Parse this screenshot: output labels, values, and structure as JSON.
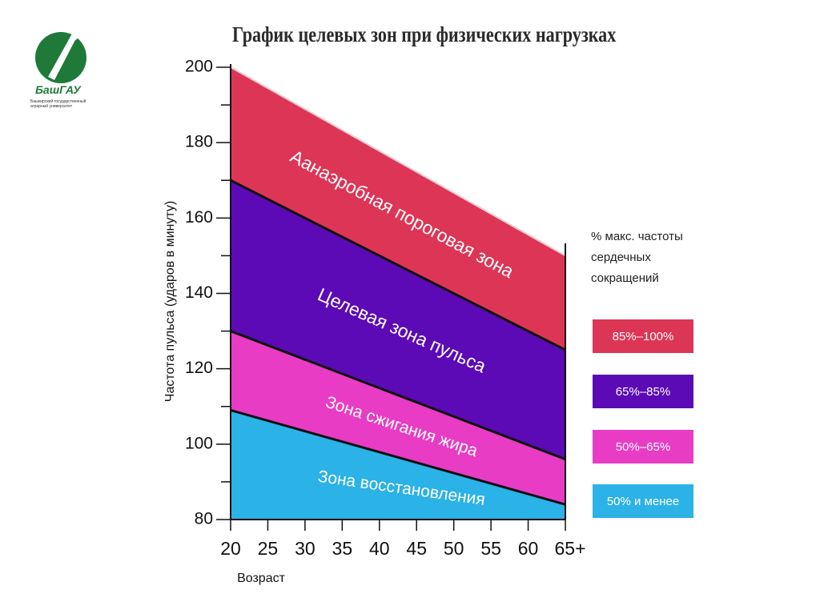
{
  "logo": {
    "name": "БашГАУ",
    "subtitle": "Башкирский государственный аграрный университет"
  },
  "chart_data": {
    "type": "area",
    "title": "График целевых зон при физических нагрузках",
    "xlabel": "Возраст",
    "ylabel": "Частота пульса (ударов в минуту)",
    "x": [
      20,
      65
    ],
    "x_ticks": [
      "20",
      "25",
      "30",
      "35",
      "40",
      "45",
      "50",
      "55",
      "60",
      "65+"
    ],
    "y_ticks": [
      80,
      100,
      120,
      140,
      160,
      180,
      200
    ],
    "ylim": [
      80,
      200
    ],
    "xlim": [
      20,
      65
    ],
    "grid": false,
    "legend_position": "right",
    "legend_title": "% макс. частоты сердечных сокращений",
    "series": [
      {
        "label": "Зона восстановления",
        "legend": "50% и менее",
        "lower": [
          80,
          80
        ],
        "upper": [
          109,
          84
        ],
        "color": "#2bb2e6"
      },
      {
        "label": "Зона сжигания жира",
        "legend": "50%–65%",
        "lower": [
          109,
          84
        ],
        "upper": [
          130,
          96
        ],
        "color": "#e83cc4"
      },
      {
        "label": "Целевая зона пульса",
        "legend": "65%–85%",
        "lower": [
          130,
          96
        ],
        "upper": [
          170,
          125
        ],
        "color": "#5b0ab5"
      },
      {
        "label": "Аанаэробная пороговая зона",
        "legend": "85%–100%",
        "lower": [
          170,
          125
        ],
        "upper": [
          200,
          150
        ],
        "color": "#dd3556"
      }
    ]
  }
}
